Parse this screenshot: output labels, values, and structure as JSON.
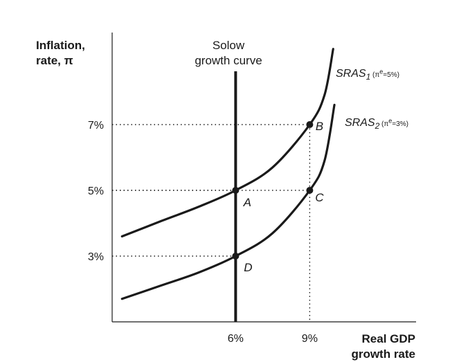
{
  "chart_data": {
    "type": "line",
    "ylabel_line1": "Inflation,",
    "ylabel_line2": "rate, π",
    "xlabel_line1": "Real GDP",
    "xlabel_line2": "growth rate",
    "solow_label_line1": "Solow",
    "solow_label_line2": "growth curve",
    "solow_x": 6,
    "x_ticks": [
      {
        "value": 6,
        "label": "6%"
      },
      {
        "value": 9,
        "label": "9%"
      }
    ],
    "y_ticks": [
      {
        "value": 3,
        "label": "3%"
      },
      {
        "value": 5,
        "label": "5%"
      },
      {
        "value": 7,
        "label": "7%"
      }
    ],
    "series": [
      {
        "name": "SRAS",
        "subscript": "1",
        "expectation": "(π",
        "expectation_sup": "e",
        "expectation_value": "=5%)",
        "color": "#1a1a1a",
        "x": [
          1.4,
          3,
          4.5,
          6,
          7.5,
          9,
          9.6,
          9.95
        ],
        "y": [
          3.6,
          4.07,
          4.5,
          5.0,
          5.7,
          7.0,
          7.9,
          9.3
        ]
      },
      {
        "name": "SRAS",
        "subscript": "2",
        "expectation": "(π",
        "expectation_sup": "e",
        "expectation_value": "=3%)",
        "color": "#1a1a1a",
        "x": [
          1.4,
          3,
          4.5,
          6,
          7.5,
          9,
          9.6,
          10.0
        ],
        "y": [
          1.7,
          2.11,
          2.5,
          3.0,
          3.7,
          5.0,
          5.9,
          7.6
        ]
      }
    ],
    "points": [
      {
        "label": "A",
        "x": 6,
        "y": 5
      },
      {
        "label": "B",
        "x": 9,
        "y": 7
      },
      {
        "label": "C",
        "x": 9,
        "y": 5
      },
      {
        "label": "D",
        "x": 6,
        "y": 3
      }
    ]
  }
}
